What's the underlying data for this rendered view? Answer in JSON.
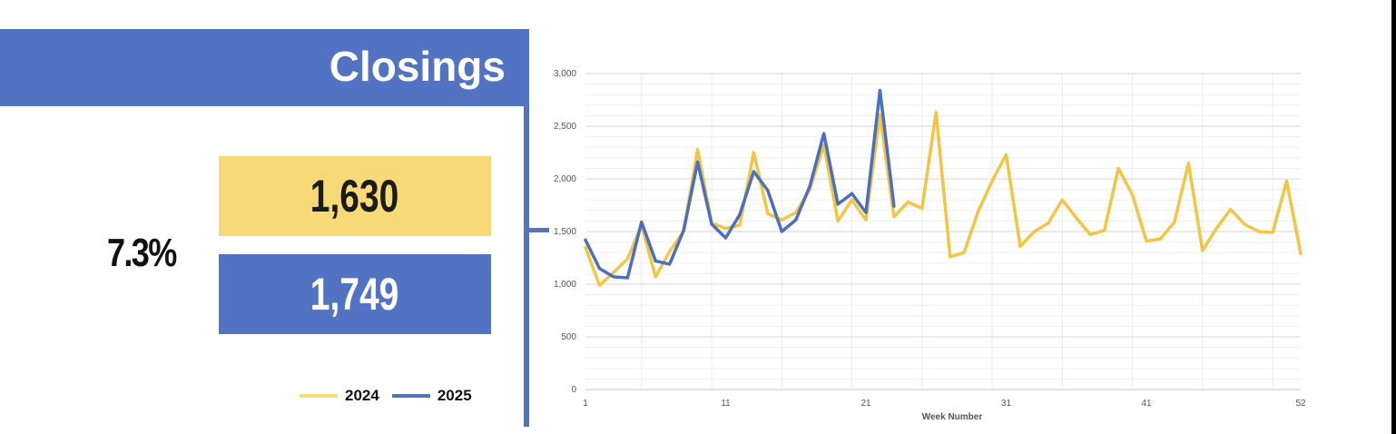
{
  "panel": {
    "title": "Closings",
    "percent_change": "7.3%",
    "value_2024": "1,630",
    "value_2025": "1,749"
  },
  "legend": [
    {
      "label": "2024",
      "color": "#f4c542"
    },
    {
      "label": "2025",
      "color": "#4a6fc1"
    }
  ],
  "colors": {
    "brand_blue": "#5272c2",
    "highlight_yellow": "#f8d977"
  },
  "chart_data": {
    "type": "line",
    "xlabel": "Week Number",
    "ylabel": "",
    "xlim": [
      1,
      52
    ],
    "ylim": [
      0,
      3000
    ],
    "x_ticks": [
      1,
      11,
      21,
      31,
      41,
      52
    ],
    "y_ticks": [
      0,
      500,
      1000,
      1500,
      2000,
      2500,
      3000
    ],
    "y_tick_labels": [
      "0",
      "500",
      "1,000",
      "1,500",
      "2,000",
      "2,500",
      "3,000"
    ],
    "grid": true,
    "series": [
      {
        "name": "2024",
        "color": "#f4c542",
        "values": [
          1350,
          990,
          1110,
          1240,
          1560,
          1070,
          1310,
          1500,
          2280,
          1580,
          1530,
          1560,
          2250,
          1670,
          1610,
          1680,
          1900,
          2320,
          1600,
          1800,
          1610,
          2610,
          1640,
          1780,
          1720,
          2630,
          1260,
          1300,
          1690,
          1980,
          2230,
          1360,
          1500,
          1580,
          1800,
          1630,
          1470,
          1510,
          2100,
          1850,
          1410,
          1430,
          1590,
          2150,
          1320,
          1530,
          1710,
          1570,
          1500,
          1490,
          1980,
          1290
        ]
      },
      {
        "name": "2025",
        "color": "#4a6fc1",
        "values": [
          1420,
          1150,
          1070,
          1060,
          1590,
          1220,
          1190,
          1510,
          2160,
          1570,
          1440,
          1660,
          2070,
          1890,
          1500,
          1610,
          1930,
          2430,
          1760,
          1860,
          1680,
          2840,
          1740
        ]
      }
    ]
  }
}
